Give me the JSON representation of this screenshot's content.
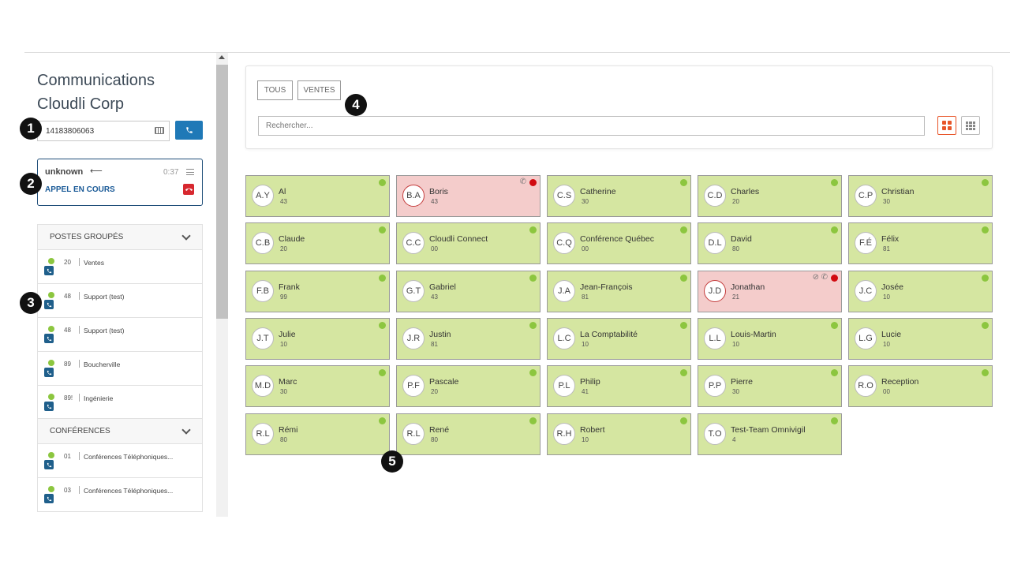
{
  "sidebar": {
    "org_title": "Communications Cloudli Corp",
    "dial_value": "14183806063",
    "call": {
      "name": "unknown",
      "direction_icon": "arrow-left-icon",
      "duration": "0:37",
      "status": "APPEL EN COURS"
    },
    "groups_header": "POSTES GROUPÉS",
    "groups": [
      {
        "ext": "20",
        "name": "Ventes"
      },
      {
        "ext": "48",
        "name": "Support (test)"
      },
      {
        "ext": "48",
        "name": "Support (test)"
      },
      {
        "ext": "89",
        "name": "Boucherville"
      },
      {
        "ext": "89!",
        "name": "Ingénierie"
      }
    ],
    "conferences_header": "CONFÉRENCES",
    "conferences": [
      {
        "ext": "01",
        "name": "Conférences Téléphoniques..."
      },
      {
        "ext": "03",
        "name": "Conférences Téléphoniques..."
      }
    ]
  },
  "filters": {
    "buttons": [
      "TOUS",
      "VENTES"
    ],
    "search_placeholder": "Rechercher..."
  },
  "contacts": [
    {
      "initials": "A.Y",
      "name": "Al",
      "ext": "43",
      "status": "available"
    },
    {
      "initials": "B.A",
      "name": "Boris",
      "ext": "43",
      "status": "busy"
    },
    {
      "initials": "C.S",
      "name": "Catherine",
      "ext": "30",
      "status": "available"
    },
    {
      "initials": "C.D",
      "name": "Charles",
      "ext": "20",
      "status": "available"
    },
    {
      "initials": "C.P",
      "name": "Christian",
      "ext": "30",
      "status": "available"
    },
    {
      "initials": "C.B",
      "name": "Claude",
      "ext": "20",
      "status": "available"
    },
    {
      "initials": "C.C",
      "name": "Cloudli Connect",
      "ext": "00",
      "status": "available"
    },
    {
      "initials": "C.Q",
      "name": "Conférence Québec",
      "ext": "00",
      "status": "available"
    },
    {
      "initials": "D.L",
      "name": "David",
      "ext": "80",
      "status": "available"
    },
    {
      "initials": "F.É",
      "name": "Félix",
      "ext": "81",
      "status": "available"
    },
    {
      "initials": "F.B",
      "name": "Frank",
      "ext": "99",
      "status": "available"
    },
    {
      "initials": "G.T",
      "name": "Gabriel",
      "ext": "43",
      "status": "available"
    },
    {
      "initials": "J.A",
      "name": "Jean-François",
      "ext": "81",
      "status": "available"
    },
    {
      "initials": "J.D",
      "name": "Jonathan",
      "ext": "21",
      "status": "busy-dnd"
    },
    {
      "initials": "J.C",
      "name": "Josée",
      "ext": "10",
      "status": "available"
    },
    {
      "initials": "J.T",
      "name": "Julie",
      "ext": "10",
      "status": "available"
    },
    {
      "initials": "J.R",
      "name": "Justin",
      "ext": "81",
      "status": "available"
    },
    {
      "initials": "L.C",
      "name": "La Comptabilité",
      "ext": "10",
      "status": "available"
    },
    {
      "initials": "L.L",
      "name": "Louis-Martin",
      "ext": "10",
      "status": "available"
    },
    {
      "initials": "L.G",
      "name": "Lucie",
      "ext": "10",
      "status": "available"
    },
    {
      "initials": "M.D",
      "name": "Marc",
      "ext": "30",
      "status": "available"
    },
    {
      "initials": "P.F",
      "name": "Pascale",
      "ext": "20",
      "status": "available"
    },
    {
      "initials": "P.L",
      "name": "Philip",
      "ext": "41",
      "status": "available"
    },
    {
      "initials": "P.P",
      "name": "Pierre",
      "ext": "30",
      "status": "available"
    },
    {
      "initials": "R.O",
      "name": "Reception",
      "ext": "00",
      "status": "available"
    },
    {
      "initials": "R.L",
      "name": "Rémi",
      "ext": "80",
      "status": "available"
    },
    {
      "initials": "R.L",
      "name": "René",
      "ext": "80",
      "status": "available"
    },
    {
      "initials": "R.H",
      "name": "Robert",
      "ext": "10",
      "status": "available"
    },
    {
      "initials": "T.O",
      "name": "Test-Team Omnivigil",
      "ext": "4",
      "status": "available"
    }
  ],
  "annotations": [
    "1",
    "2",
    "3",
    "4",
    "5"
  ],
  "colors": {
    "accent_blue": "#1f79b7",
    "available_tile": "#d5e6a1",
    "busy_tile": "#f4cccb",
    "status_green": "#8cc63f",
    "status_red": "#d10a10",
    "view_active": "#e8562a"
  }
}
